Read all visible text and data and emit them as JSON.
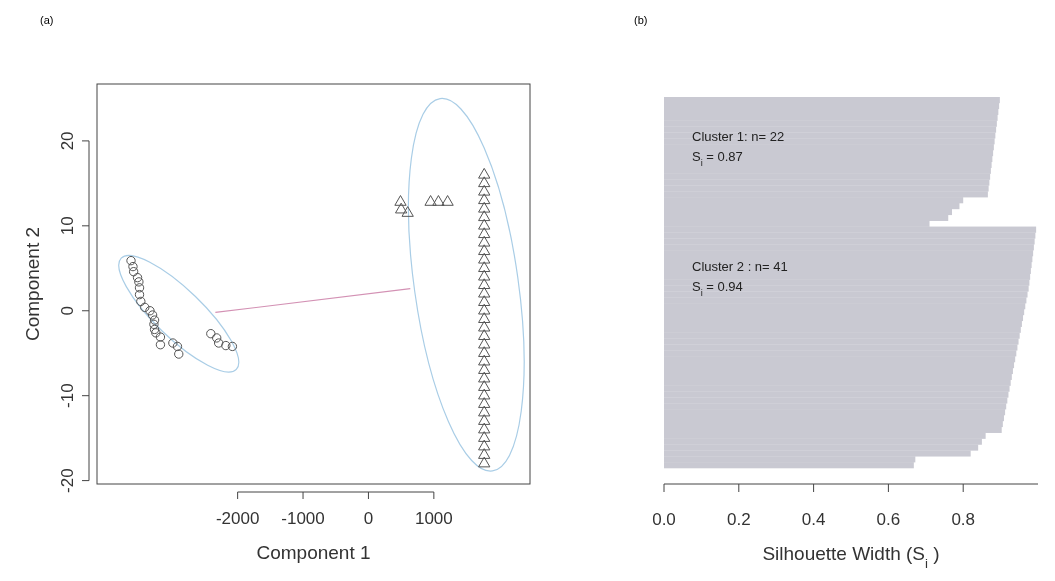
{
  "chart_data": [
    {
      "type": "scatter",
      "title": "(a)",
      "xlabel": "Component 1",
      "ylabel": "Component 2",
      "xlim": [
        -4150,
        2470
      ],
      "ylim": [
        -20.4,
        26.7
      ],
      "xticks": [
        -2000,
        -1000,
        0,
        1000
      ],
      "yticks": [
        -20,
        -10,
        0,
        10,
        20
      ],
      "series": [
        {
          "type": "scatter",
          "marker": "circle",
          "color": "#555555",
          "x": [
            -3630,
            -3600,
            -3590,
            -3530,
            -3510,
            -3500,
            -3500,
            -3480,
            -3420,
            -3340,
            -3300,
            -3270,
            -3280,
            -3270,
            -3250,
            -3180,
            -3180,
            -2990,
            -2920,
            -2900,
            -2410,
            -2320,
            -2290,
            -2180,
            -2080
          ],
          "values": [
            5.9,
            5.2,
            4.6,
            3.9,
            3.4,
            2.7,
            1.9,
            1.1,
            0.4,
            0,
            -0.5,
            -1.1,
            -1.6,
            -2.2,
            -2.6,
            -3.1,
            -4,
            -3.8,
            -4.2,
            -5.1,
            -2.7,
            -3.2,
            -3.8,
            -4.1,
            -4.2
          ]
        },
        {
          "type": "scatter",
          "marker": "triangle",
          "color": "#555555",
          "x": [
            490,
            500,
            600,
            950,
            1070,
            1210,
            1770,
            1770,
            1770,
            1770,
            1770,
            1770,
            1770,
            1770,
            1770,
            1770,
            1770,
            1770,
            1770,
            1770,
            1770,
            1770,
            1770,
            1770,
            1770,
            1770,
            1770,
            1770,
            1770,
            1770,
            1770,
            1770,
            1770,
            1770,
            1770,
            1770,
            1770,
            1770,
            1770,
            1770,
            1770
          ],
          "values": [
            12.8,
            11.9,
            11.5,
            12.8,
            12.8,
            12.8,
            16,
            15,
            14,
            13,
            12,
            11,
            10,
            9,
            8,
            7,
            6,
            5,
            4,
            3,
            2,
            1,
            0,
            -1,
            -2,
            -3,
            -4,
            -5,
            -6,
            -7,
            -8,
            -9,
            -10,
            -11,
            -12,
            -13,
            -14,
            -15,
            -16,
            -17,
            -18
          ]
        },
        {
          "type": "line",
          "marker": "none",
          "color": "#d391b4",
          "x": [
            -2340,
            640
          ],
          "values": [
            -0.2,
            2.6
          ]
        }
      ]
    },
    {
      "type": "bar",
      "title": "(b)",
      "orientation": "horizontal",
      "xlabel": "Silhouette Width (S$_{i}$)",
      "color": "#c9c9d2",
      "xlim": [
        0,
        1
      ],
      "xticks": [
        {
          "value": 0,
          "label": "0.0"
        },
        0.2,
        0.4,
        0.6,
        0.8
      ],
      "tick_labels": "x",
      "annotations": [
        "Cluster 1: n= 22",
        "S$_{i}$ = 0.87",
        "Cluster 2 : n= 41",
        "S$_{i}$ = 0.94"
      ],
      "categories": [
        null,
        null,
        null,
        null,
        null,
        null,
        null,
        null,
        null,
        null,
        null,
        null,
        null,
        null,
        null,
        null,
        null,
        null,
        null,
        null,
        null,
        null,
        null,
        null,
        null,
        null,
        null,
        null,
        null,
        null,
        null,
        null,
        null,
        null,
        null,
        null,
        null,
        null,
        null,
        null,
        null,
        null,
        null,
        null,
        null,
        null,
        null,
        null,
        null,
        null,
        null,
        null,
        null,
        null,
        null,
        null,
        null,
        null,
        null,
        null,
        null,
        null,
        null
      ],
      "values": [
        0.898,
        0.896,
        0.894,
        0.892,
        0.89,
        0.888,
        0.886,
        0.884,
        0.882,
        0.88,
        0.878,
        0.876,
        0.874,
        0.872,
        0.87,
        0.868,
        0.866,
        0.8,
        0.79,
        0.77,
        0.76,
        0.71,
        0.995,
        0.993,
        0.991,
        0.989,
        0.987,
        0.985,
        0.983,
        0.981,
        0.979,
        0.977,
        0.975,
        0.972,
        0.969,
        0.966,
        0.963,
        0.96,
        0.957,
        0.954,
        0.951,
        0.948,
        0.945,
        0.942,
        0.939,
        0.936,
        0.933,
        0.93,
        0.927,
        0.924,
        0.921,
        0.918,
        0.915,
        0.912,
        0.909,
        0.906,
        0.903,
        0.86,
        0.85,
        0.84,
        0.82,
        0.672,
        0.668
      ]
    }
  ]
}
